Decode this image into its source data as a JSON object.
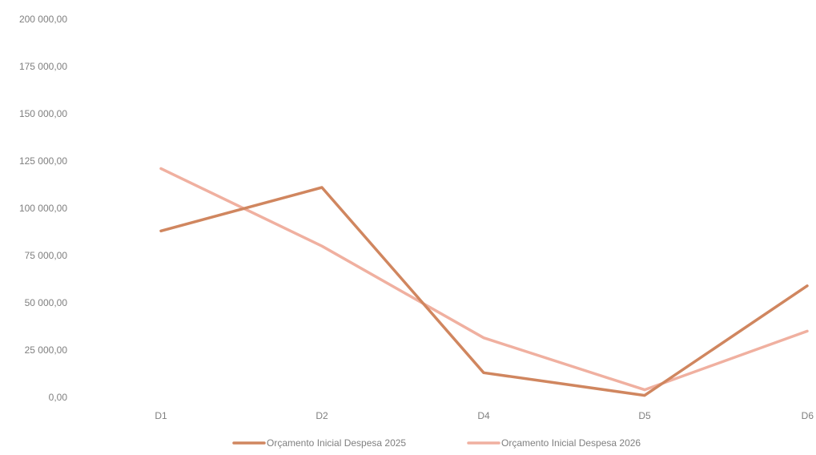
{
  "chart_data": {
    "type": "line",
    "title": "",
    "xlabel": "",
    "ylabel": "",
    "categories": [
      "D1",
      "D2",
      "D4",
      "D5",
      "D6"
    ],
    "ylim": [
      0,
      200000
    ],
    "yticks": [
      0,
      25000,
      50000,
      75000,
      100000,
      125000,
      150000,
      175000,
      200000
    ],
    "ytick_labels": [
      "0,00",
      "25 000,00",
      "50 000,00",
      "75 000,00",
      "100 000,00",
      "125 000,00",
      "150 000,00",
      "175 000,00",
      "200 000,00"
    ],
    "grid": false,
    "legend_position": "bottom",
    "series": [
      {
        "name": "Orçamento Inicial  Despesa 2025",
        "color": "#d0865f",
        "values": [
          88000,
          111000,
          13000,
          1000,
          59000
        ]
      },
      {
        "name": "Orçamento Inicial  Despesa 2026",
        "color": "#f0b0a0",
        "values": [
          121000,
          80000,
          31500,
          4000,
          35000
        ]
      }
    ]
  }
}
